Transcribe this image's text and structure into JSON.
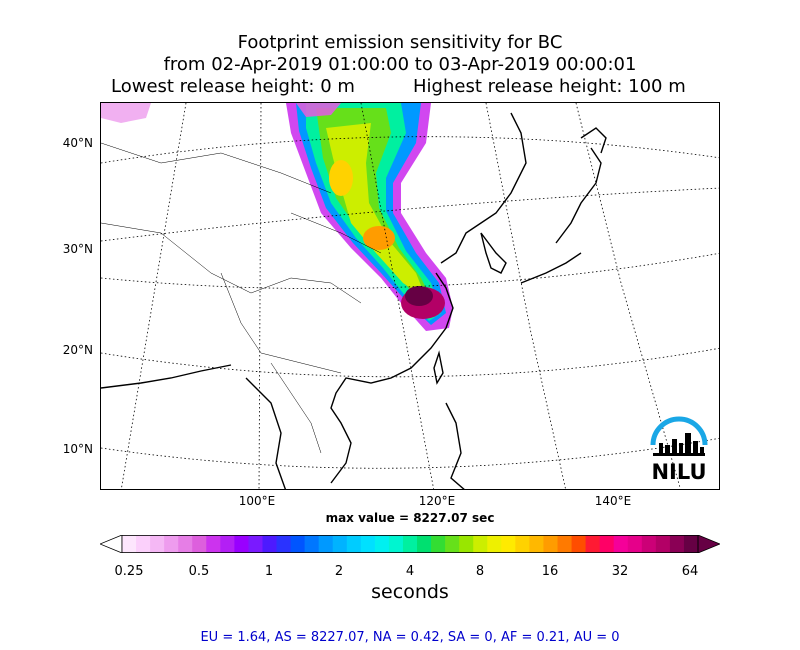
{
  "title": {
    "line1": "Footprint emission sensitivity for BC",
    "line2": "from 02-Apr-2019 01:00:00 to 03-Apr-2019 00:00:01",
    "lowest_release": "Lowest release height: 0 m",
    "highest_release": "Highest release height: 100 m"
  },
  "map": {
    "lat_labels": [
      "40°N",
      "30°N",
      "20°N",
      "10°N"
    ],
    "lon_labels": [
      "100°E",
      "120°E",
      "140°E"
    ],
    "logo_text": "NILU"
  },
  "max_value": "max value = 8227.07 sec",
  "colorbar": {
    "ticks": [
      "0.25",
      "0.5",
      "1",
      "2",
      "4",
      "8",
      "16",
      "32",
      "64"
    ],
    "units": "seconds",
    "colors": [
      "#fde6fd",
      "#fbd0fb",
      "#f5b8f5",
      "#ee9cee",
      "#e67ee6",
      "#dd5fdd",
      "#cc33ee",
      "#b31ff5",
      "#9900ff",
      "#7a1aff",
      "#4d1aff",
      "#2a33ff",
      "#0055ff",
      "#0077ff",
      "#0099ff",
      "#00b3ff",
      "#00ccff",
      "#00e0ff",
      "#00f0f0",
      "#00f5d0",
      "#00f0a0",
      "#00e070",
      "#33dd33",
      "#66e01a",
      "#99e600",
      "#ccee00",
      "#eef000",
      "#ffea00",
      "#ffd200",
      "#ffb800",
      "#ff9c00",
      "#ff7a00",
      "#ff4d00",
      "#ff1a33",
      "#ff0066",
      "#f50099",
      "#e6008a",
      "#cc0077",
      "#b30066",
      "#8a0055",
      "#660044"
    ]
  },
  "stats": "EU = 1.64,  AS = 8227.07,  NA = 0.42,  SA = 0,  AF = 0.21,  AU = 0"
}
